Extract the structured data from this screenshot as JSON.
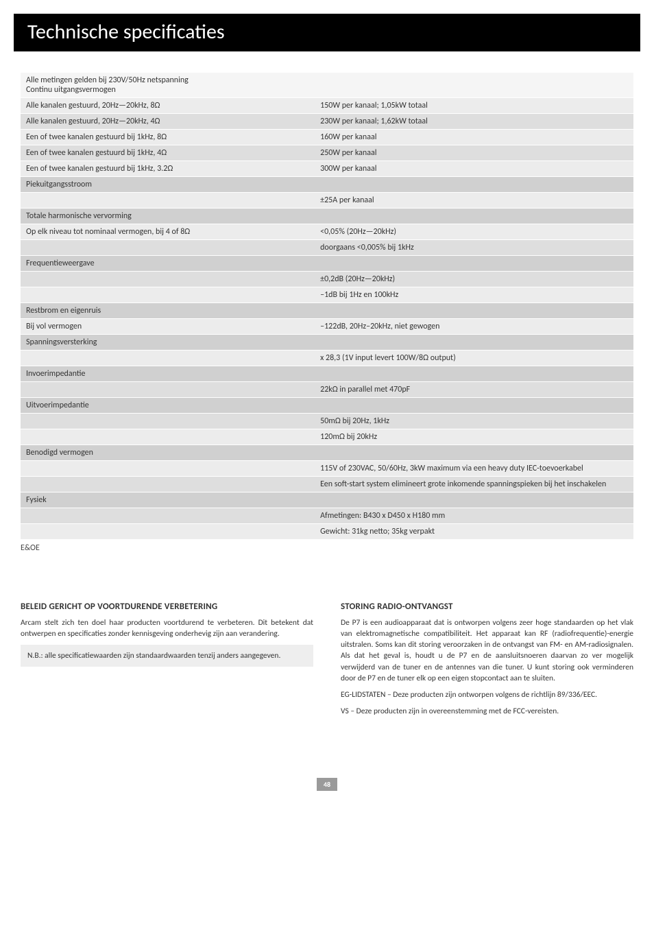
{
  "title": "Technische specificaties",
  "rows": [
    {
      "cls": "row-lightest",
      "left": "Alle metingen gelden bij 230V/50Hz netspanning\nContinu uitgangsvermogen",
      "right": ""
    },
    {
      "cls": "row-light",
      "left": "Alle kanalen gestuurd, 20Hz—20kHz, 8Ω",
      "right": "150W per kanaal; 1,05kW totaal"
    },
    {
      "cls": "row-mid",
      "left": "Alle kanalen gestuurd, 20Hz—20kHz, 4Ω",
      "right": "230W per kanaal; 1,62kW totaal"
    },
    {
      "cls": "row-light",
      "left": "Een of twee kanalen gestuurd bij 1kHz, 8Ω",
      "right": "160W per kanaal"
    },
    {
      "cls": "row-mid",
      "left": "Een of twee kanalen gestuurd bij 1kHz, 4Ω",
      "right": "250W per kanaal"
    },
    {
      "cls": "row-light",
      "left": "Een of twee kanalen gestuurd bij 1kHz, 3.2Ω",
      "right": "300W per kanaal"
    },
    {
      "cls": "row-head",
      "left": "Piekuitgangsstroom",
      "right": ""
    },
    {
      "cls": "row-light",
      "left": "",
      "right": "±25A per kanaal"
    },
    {
      "cls": "row-head",
      "left": "Totale harmonische vervorming",
      "right": ""
    },
    {
      "cls": "row-light",
      "left": "Op elk niveau tot nominaal vermogen, bij 4 of 8Ω",
      "right": "<0,05% (20Hz—20kHz)"
    },
    {
      "cls": "row-mid",
      "left": "",
      "right": "doorgaans <0,005% bij 1kHz"
    },
    {
      "cls": "row-head",
      "left": "Frequentieweergave",
      "right": ""
    },
    {
      "cls": "row-mid",
      "left": "",
      "right": "±0,2dB (20Hz—20kHz)"
    },
    {
      "cls": "row-light",
      "left": "",
      "right": "–1dB bij 1Hz en 100kHz"
    },
    {
      "cls": "row-head",
      "left": "Restbrom en eigenruis",
      "right": ""
    },
    {
      "cls": "row-light",
      "left": "Bij vol vermogen",
      "right": "–122dB, 20Hz–20kHz, niet gewogen"
    },
    {
      "cls": "row-head",
      "left": "Spanningsversterking",
      "right": ""
    },
    {
      "cls": "row-light",
      "left": "",
      "right": "x 28,3 (1V input levert 100W/8Ω output)"
    },
    {
      "cls": "row-head",
      "left": "Invoerimpedantie",
      "right": ""
    },
    {
      "cls": "row-mid",
      "left": "",
      "right": "22kΩ in parallel met 470pF"
    },
    {
      "cls": "row-head",
      "left": "Uitvoerimpedantie",
      "right": ""
    },
    {
      "cls": "row-mid",
      "left": "",
      "right": "50mΩ bij 20Hz, 1kHz"
    },
    {
      "cls": "row-light",
      "left": "",
      "right": "120mΩ bij 20kHz"
    },
    {
      "cls": "row-head",
      "left": "Benodigd vermogen",
      "right": ""
    },
    {
      "cls": "row-light",
      "left": "",
      "right": "115V of 230VAC, 50/60Hz, 3kW maximum via een heavy duty IEC-toevoerkabel"
    },
    {
      "cls": "row-mid",
      "left": "",
      "right": "Een soft-start system elimineert grote inkomende spanningspieken bij het inschakelen"
    },
    {
      "cls": "row-head",
      "left": "Fysiek",
      "right": ""
    },
    {
      "cls": "row-mid",
      "left": "",
      "right": "Afmetingen: B430 x D450 x H180 mm"
    },
    {
      "cls": "row-light",
      "left": "",
      "right": "Gewicht: 31kg netto; 35kg verpakt"
    }
  ],
  "eoe": "E&OE",
  "left_col": {
    "heading": "BELEID GERICHT OP VOORTDURENDE VERBETERING",
    "p1": "Arcam stelt zich ten doel haar producten voortdurend te verbeteren. Dit betekent dat ontwerpen en specificaties zonder kennisgeving onderhevig zijn aan verandering.",
    "note_label": "N.B.",
    "note_text": ": alle specificatiewaarden zijn standaardwaarden tenzij anders aangegeven."
  },
  "right_col": {
    "heading": "STORING RADIO-ONTVANGST",
    "p1": "De P7 is een audioapparaat dat is ontworpen volgens zeer hoge standaarden op het vlak van elektromagnetische compatibiliteit. Het apparaat kan RF (radiofrequentie)-energie uitstralen. Soms kan dit storing veroorzaken in de ontvangst van FM- en AM-radiosignalen. Als dat het geval is, houdt u de P7 en de aansluitsnoeren daarvan zo ver mogelijk verwijderd van de tuner en de antennes van die tuner. U kunt storing ook verminderen door de P7 en de tuner elk op een eigen stopcontact aan te sluiten.",
    "p2": "EG-LIDSTATEN – Deze producten zijn ontworpen volgens de richtlijn 89/336/EEC.",
    "p3": "VS – Deze producten zijn in overeenstemming met de FCC-vereisten."
  },
  "page_number": "48"
}
